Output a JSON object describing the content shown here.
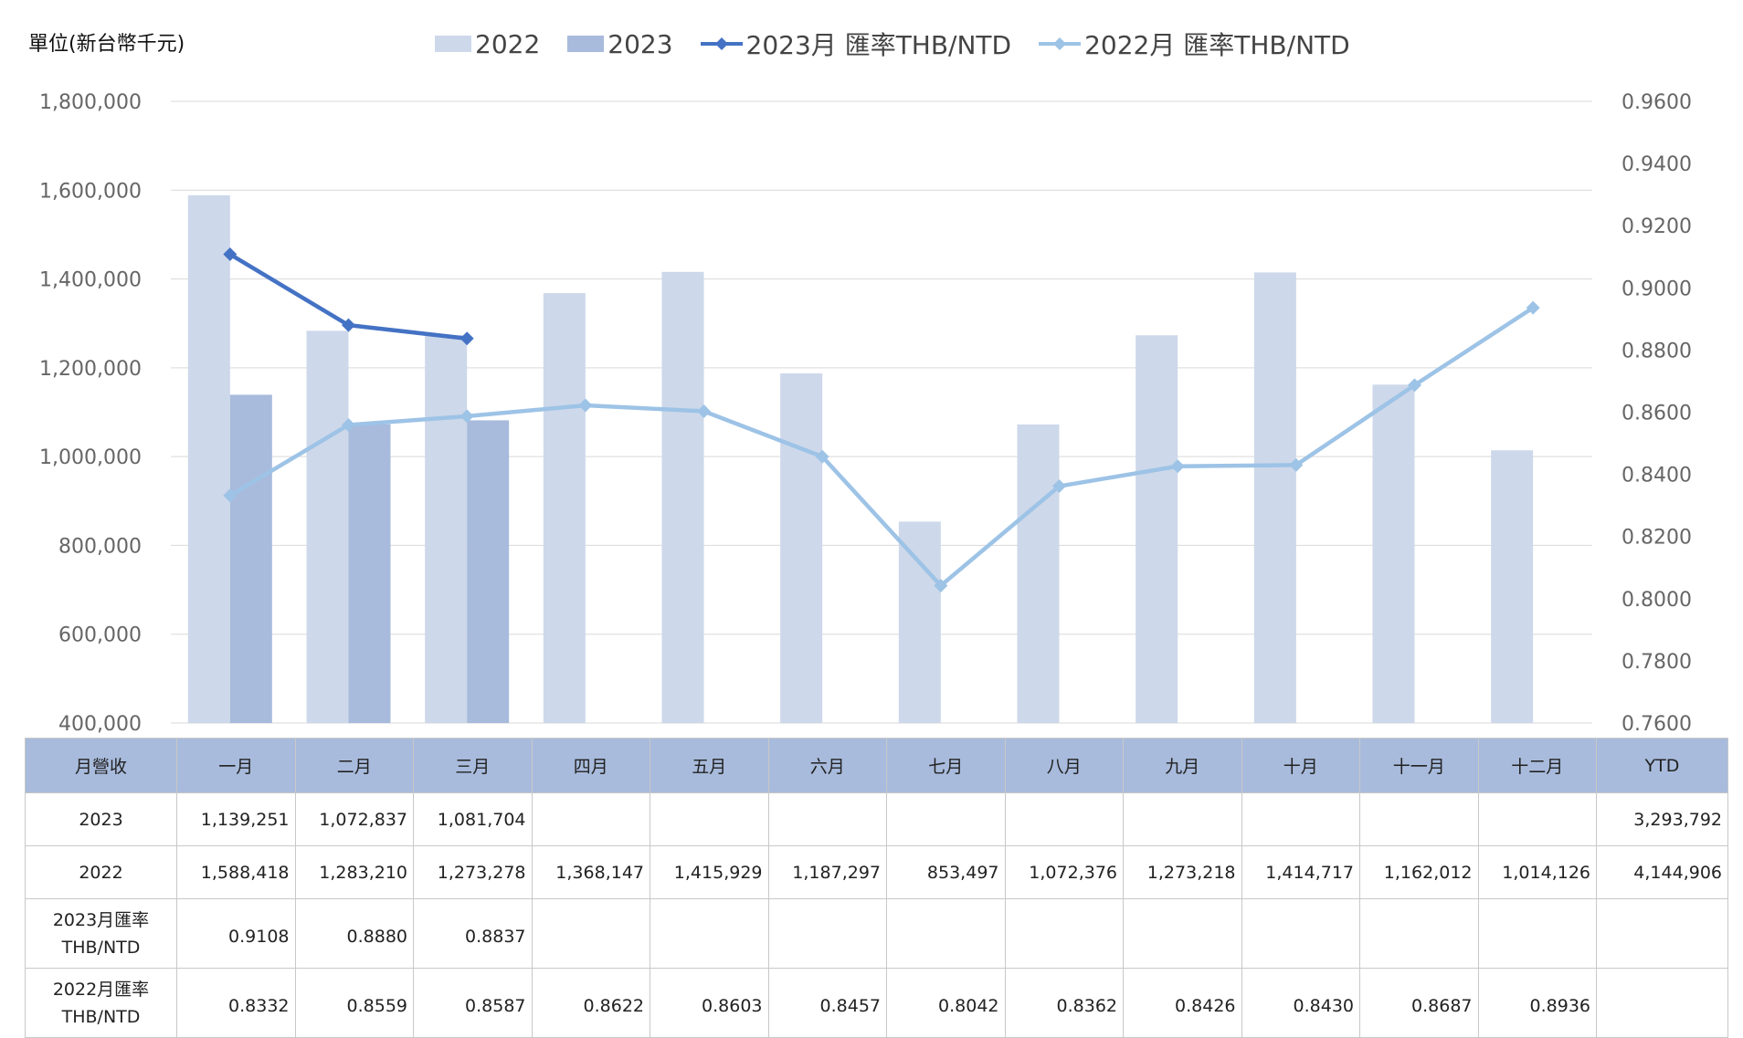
{
  "chart_data": {
    "type": "bar",
    "unit_label": "單位(新台幣千元)",
    "categories": [
      "一月",
      "二月",
      "三月",
      "四月",
      "五月",
      "六月",
      "七月",
      "八月",
      "九月",
      "十月",
      "十一月",
      "十二月"
    ],
    "series": [
      {
        "name": "2022",
        "type": "bar",
        "axis": "left",
        "color": "#cdd8ea",
        "values": [
          1588418,
          1283210,
          1273278,
          1368147,
          1415929,
          1187297,
          853497,
          1072376,
          1273218,
          1414717,
          1162012,
          1014126
        ]
      },
      {
        "name": "2023",
        "type": "bar",
        "axis": "left",
        "color": "#a8bbdc",
        "values": [
          1139251,
          1072837,
          1081704,
          null,
          null,
          null,
          null,
          null,
          null,
          null,
          null,
          null
        ]
      },
      {
        "name": "2023月 匯率THB/NTD",
        "type": "line",
        "axis": "right",
        "color": "#4472c4",
        "values": [
          0.9108,
          0.888,
          0.8837,
          null,
          null,
          null,
          null,
          null,
          null,
          null,
          null,
          null
        ]
      },
      {
        "name": "2022月 匯率THB/NTD",
        "type": "line",
        "axis": "right",
        "color": "#9dc3e6",
        "values": [
          0.8332,
          0.8559,
          0.8587,
          0.8622,
          0.8603,
          0.8457,
          0.8042,
          0.8362,
          0.8426,
          0.843,
          0.8687,
          0.8936
        ]
      }
    ],
    "y_left": {
      "range": [
        400000,
        1800000
      ],
      "ticks": [
        "1,800,000",
        "1,600,000",
        "1,400,000",
        "1,200,000",
        "1,000,000",
        "800,000",
        "600,000",
        "400,000"
      ],
      "tick_values": [
        1800000,
        1600000,
        1400000,
        1200000,
        1000000,
        800000,
        600000,
        400000
      ]
    },
    "y_right": {
      "range": [
        0.76,
        0.96
      ],
      "ticks": [
        "0.9600",
        "0.9400",
        "0.9200",
        "0.9000",
        "0.8800",
        "0.8600",
        "0.8400",
        "0.8200",
        "0.8000",
        "0.7800",
        "0.7600"
      ],
      "tick_values": [
        0.96,
        0.94,
        0.92,
        0.9,
        0.88,
        0.86,
        0.84,
        0.82,
        0.8,
        0.78,
        0.76
      ]
    },
    "grid": true,
    "legend_position": "top",
    "colors": {
      "grid": "#d9d9d9",
      "tick": "#666666"
    }
  },
  "table": {
    "header": [
      "月營收",
      "一月",
      "二月",
      "三月",
      "四月",
      "五月",
      "六月",
      "七月",
      "八月",
      "九月",
      "十月",
      "十一月",
      "十二月",
      "YTD"
    ],
    "rows": [
      {
        "label": [
          "2023"
        ],
        "cls": "r-val",
        "cells": [
          "1,139,251",
          "1,072,837",
          "1,081,704",
          "",
          "",
          "",
          "",
          "",
          "",
          "",
          "",
          "",
          "3,293,792"
        ]
      },
      {
        "label": [
          "2022"
        ],
        "cls": "r-val",
        "cells": [
          "1,588,418",
          "1,283,210",
          "1,273,278",
          "1,368,147",
          "1,415,929",
          "1,187,297",
          "853,497",
          "1,072,376",
          "1,273,218",
          "1,414,717",
          "1,162,012",
          "1,014,126",
          "4,144,906"
        ]
      },
      {
        "label": [
          "2023月匯率",
          "THB/NTD"
        ],
        "cls": "r-rate",
        "cells": [
          "0.9108",
          "0.8880",
          "0.8837",
          "",
          "",
          "",
          "",
          "",
          "",
          "",
          "",
          "",
          ""
        ]
      },
      {
        "label": [
          "2022月匯率",
          "THB/NTD"
        ],
        "cls": "r-rate",
        "cells": [
          "0.8332",
          "0.8559",
          "0.8587",
          "0.8622",
          "0.8603",
          "0.8457",
          "0.8042",
          "0.8362",
          "0.8426",
          "0.8430",
          "0.8687",
          "0.8936",
          ""
        ]
      }
    ]
  }
}
